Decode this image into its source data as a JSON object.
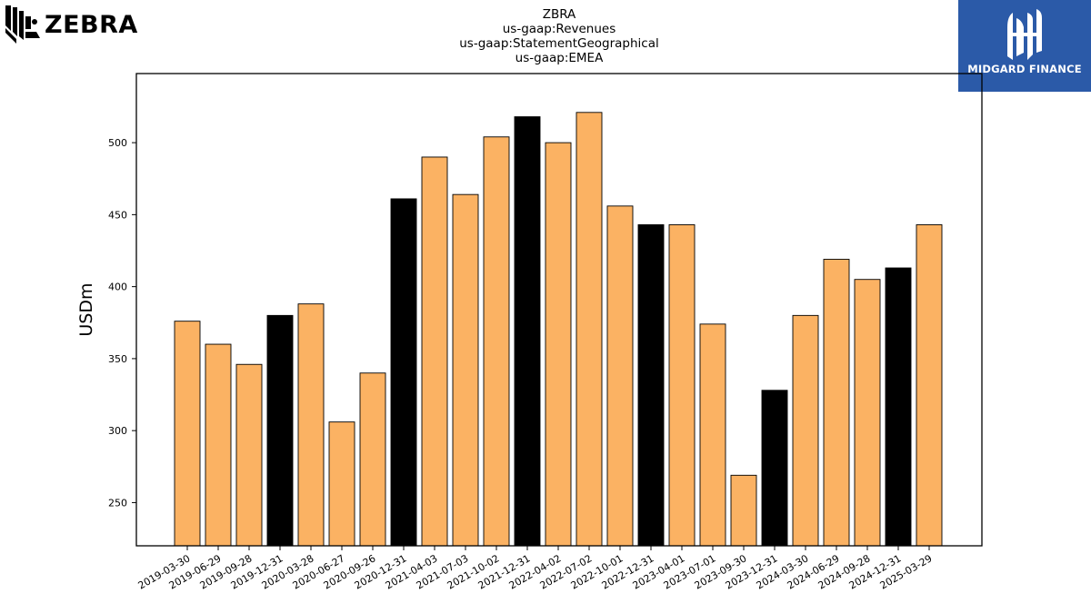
{
  "logos": {
    "left_brand": "ZEBRA",
    "right_brand": "MIDGARD FINANCE"
  },
  "chart_data": {
    "type": "bar",
    "title_lines": [
      "ZBRA",
      "us-gaap:Revenues",
      "us-gaap:StatementGeographical",
      "us-gaap:EMEA"
    ],
    "ylabel": "USDm",
    "xlabel": "",
    "ylim": [
      220,
      548
    ],
    "yticks": [
      250,
      300,
      350,
      400,
      450,
      500
    ],
    "grid": false,
    "categories": [
      "2019-03-30",
      "2019-06-29",
      "2019-09-28",
      "2019-12-31",
      "2020-03-28",
      "2020-06-27",
      "2020-09-26",
      "2020-12-31",
      "2021-04-03",
      "2021-07-03",
      "2021-10-02",
      "2021-12-31",
      "2022-04-02",
      "2022-07-02",
      "2022-10-01",
      "2022-12-31",
      "2023-04-01",
      "2023-07-01",
      "2023-09-30",
      "2023-12-31",
      "2024-03-30",
      "2024-06-29",
      "2024-09-28",
      "2024-12-31",
      "2025-03-29"
    ],
    "values": [
      376,
      360,
      346,
      380,
      388,
      306,
      340,
      461,
      490,
      464,
      504,
      518,
      500,
      521,
      456,
      443,
      443,
      374,
      269,
      328,
      380,
      419,
      405,
      413,
      443
    ],
    "bar_colors": [
      "#fbb263",
      "#fbb263",
      "#fbb263",
      "#000000",
      "#fbb263",
      "#fbb263",
      "#fbb263",
      "#000000",
      "#fbb263",
      "#fbb263",
      "#fbb263",
      "#000000",
      "#fbb263",
      "#fbb263",
      "#fbb263",
      "#000000",
      "#fbb263",
      "#fbb263",
      "#fbb263",
      "#000000",
      "#fbb263",
      "#fbb263",
      "#fbb263",
      "#000000",
      "#fbb263"
    ]
  }
}
